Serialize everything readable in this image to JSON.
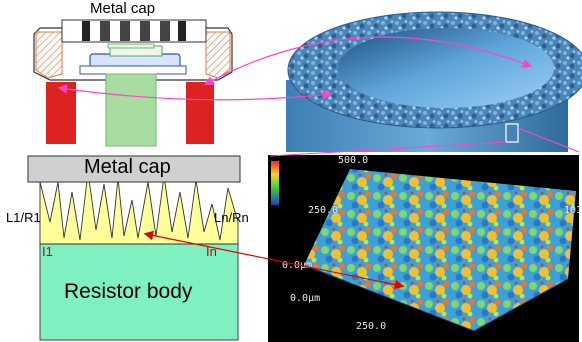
{
  "cap_drawing": {
    "title": "Metal cap"
  },
  "schematic": {
    "cap_label": "Metal cap",
    "left_label": "L1/R1",
    "right_label": "Ln/Rn",
    "left_current": "I1",
    "right_current": "In",
    "body_label": "Resistor body"
  },
  "scan": {
    "ticks": [
      "500.0",
      "250.0",
      "0.0μm",
      "0.0μm",
      "250.0",
      "101"
    ]
  },
  "colors": {
    "cap_gray": "#d0d0d0",
    "interface_yellow": "#ffff99",
    "body_green": "#7ff0c0",
    "arrow_magenta": "#ff44cc",
    "arrow_red": "#e00000",
    "current_red": "#cc0000"
  }
}
